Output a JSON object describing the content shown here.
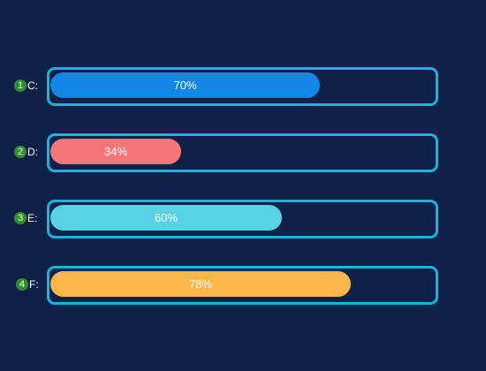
{
  "drives": [
    {
      "index": "1",
      "label": "C:",
      "percent": 70,
      "percent_label": "70%",
      "color": "#1287e6"
    },
    {
      "index": "2",
      "label": "D:",
      "percent": 34,
      "percent_label": "34%",
      "color": "#f47677"
    },
    {
      "index": "3",
      "label": "E:",
      "percent": 60,
      "percent_label": "60%",
      "color": "#57d2e4"
    },
    {
      "index": "4",
      "label": "F:",
      "percent": 78,
      "percent_label": "78%",
      "color": "#f9b74a"
    }
  ],
  "colors": {
    "background": "#0d2149",
    "track_border": "#18b4e0",
    "badge": "#2f8f2c"
  }
}
